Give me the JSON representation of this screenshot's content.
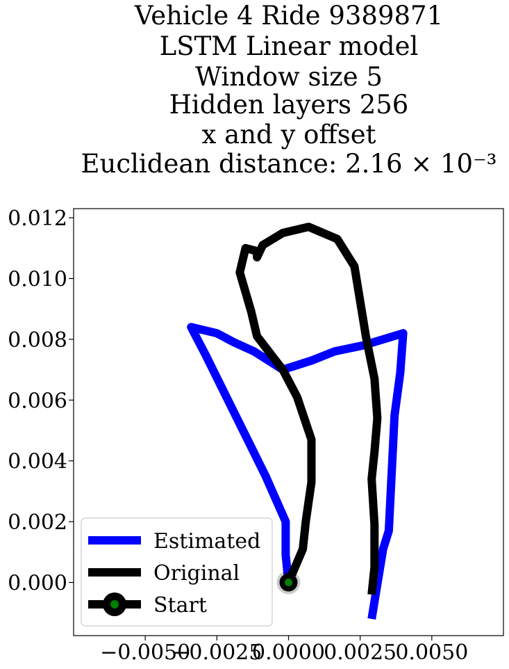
{
  "chart_data": {
    "type": "line",
    "title_lines": [
      "Vehicle 4 Ride 9389871",
      "LSTM Linear model",
      "Window size 5",
      "Hidden layers 256",
      "x and y offset",
      "Euclidean distance: 2.16 × 10⁻³"
    ],
    "xlabel": "",
    "ylabel": "",
    "xlim": [
      -0.0075,
      0.0075
    ],
    "ylim": [
      -0.00175,
      0.0123
    ],
    "x_ticks": [
      -0.005,
      -0.0025,
      0.0,
      0.0025,
      0.005
    ],
    "x_tick_labels": [
      "−0.0050",
      "−0.0025",
      "0.0000",
      "0.0025",
      "0.0050"
    ],
    "y_ticks": [
      0.0,
      0.002,
      0.004,
      0.006,
      0.008,
      0.01,
      0.012
    ],
    "y_tick_labels": [
      "0.000",
      "0.002",
      "0.004",
      "0.006",
      "0.008",
      "0.010",
      "0.012"
    ],
    "grid": false,
    "legend_position": "lower-left",
    "series": [
      {
        "name": "Estimated",
        "color": "#0000ff",
        "points": [
          [
            0.0,
            0.0
          ],
          [
            -0.0001,
            0.0009
          ],
          [
            -0.0001,
            0.002
          ],
          [
            -0.0008,
            0.0035
          ],
          [
            -0.0029,
            0.0075
          ],
          [
            -0.0034,
            0.0084
          ],
          [
            -0.0025,
            0.0082
          ],
          [
            -0.0019,
            0.0079
          ],
          [
            -0.0012,
            0.0076
          ],
          [
            -0.0002,
            0.007
          ],
          [
            0.0008,
            0.0073
          ],
          [
            0.0016,
            0.0076
          ],
          [
            0.0026,
            0.0078
          ],
          [
            0.004,
            0.0082
          ],
          [
            0.0039,
            0.0069
          ],
          [
            0.0037,
            0.0055
          ],
          [
            0.0035,
            0.0017
          ],
          [
            0.0033,
            0.0011
          ],
          [
            0.0029,
            -0.0012
          ]
        ]
      },
      {
        "name": "Original",
        "color": "#000000",
        "points": [
          [
            0.0,
            0.0
          ],
          [
            0.0005,
            0.0011
          ],
          [
            0.0006,
            0.002
          ],
          [
            0.0008,
            0.0033
          ],
          [
            0.0008,
            0.0047
          ],
          [
            0.0003,
            0.0061
          ],
          [
            -0.0002,
            0.007
          ],
          [
            -0.0011,
            0.0081
          ],
          [
            -0.0013,
            0.0089
          ],
          [
            -0.0017,
            0.0102
          ],
          [
            -0.0015,
            0.011
          ],
          [
            -0.0011,
            0.0109
          ],
          [
            -0.0011,
            0.0107
          ],
          [
            -0.0009,
            0.0111
          ],
          [
            -0.0002,
            0.0115
          ],
          [
            0.0007,
            0.0117
          ],
          [
            0.0017,
            0.0113
          ],
          [
            0.0023,
            0.0104
          ],
          [
            0.0027,
            0.0081
          ],
          [
            0.003,
            0.0067
          ],
          [
            0.0031,
            0.0054
          ],
          [
            0.003,
            0.0043
          ],
          [
            0.0029,
            0.0034
          ],
          [
            0.003,
            0.0019
          ],
          [
            0.003,
            0.0005
          ],
          [
            0.0029,
            -0.0004
          ]
        ]
      }
    ],
    "start_marker": {
      "name": "Start",
      "point": [
        0.0,
        0.0
      ],
      "outer_color": "#000000",
      "inner_color": "#008000"
    }
  }
}
